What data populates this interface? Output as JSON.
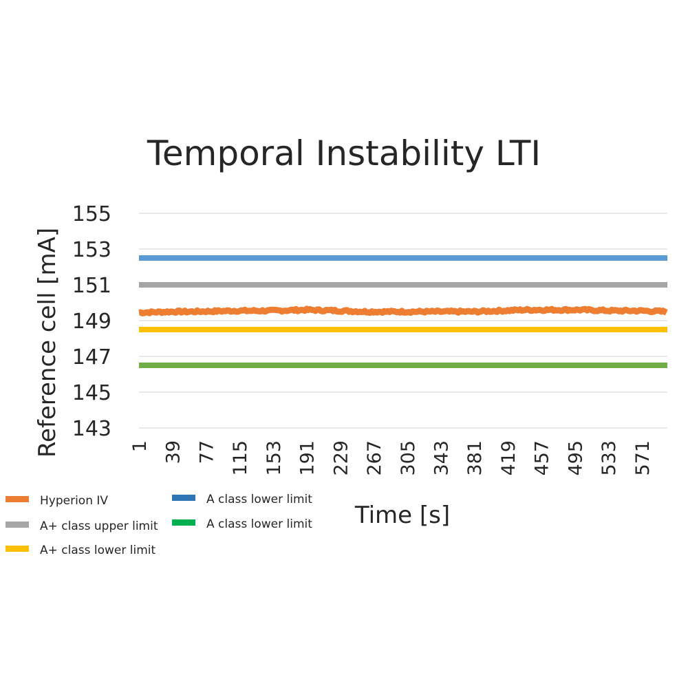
{
  "chart_data": {
    "type": "line",
    "title": "Temporal Instability LTI",
    "xlabel": "Time [s]",
    "ylabel": "Reference cell [mA]",
    "ylim": [
      143,
      155
    ],
    "yticks": [
      "155",
      "153",
      "151",
      "149",
      "147",
      "145",
      "143"
    ],
    "xlim": [
      1,
      600
    ],
    "xticks": [
      "1",
      "39",
      "77",
      "115",
      "153",
      "191",
      "229",
      "267",
      "305",
      "343",
      "381",
      "419",
      "457",
      "495",
      "533",
      "571"
    ],
    "grid": true,
    "legend_position": "bottom-left",
    "series": [
      {
        "name": "Hyperion IV",
        "color": "#ED7D31",
        "kind": "noisy",
        "base": 149.5,
        "x": [
          1,
          40,
          60,
          110,
          150,
          190,
          230,
          260,
          300,
          340,
          380,
          410,
          440,
          470,
          500,
          540,
          570,
          600
        ],
        "values": [
          149.45,
          149.5,
          149.5,
          149.55,
          149.55,
          149.6,
          149.55,
          149.5,
          149.5,
          149.5,
          149.5,
          149.55,
          149.6,
          149.6,
          149.6,
          149.55,
          149.55,
          149.5
        ]
      },
      {
        "name": "A+ class upper limit",
        "color": "#A5A5A5",
        "kind": "flat",
        "x": [
          1,
          600
        ],
        "values": [
          151,
          151
        ]
      },
      {
        "name": "A+ class lower limit",
        "color": "#FFC000",
        "kind": "flat",
        "x": [
          1,
          600
        ],
        "values": [
          148.5,
          148.5
        ]
      },
      {
        "name": "A class lower limit",
        "color": "#5B9BD5",
        "legend_color": "#2E75B6",
        "kind": "flat",
        "x": [
          1,
          600
        ],
        "values": [
          152.5,
          152.5
        ]
      },
      {
        "name": "A class lower limit",
        "color": "#70AD47",
        "legend_color": "#00B050",
        "kind": "flat",
        "x": [
          1,
          600
        ],
        "values": [
          146.5,
          146.5
        ]
      }
    ]
  }
}
